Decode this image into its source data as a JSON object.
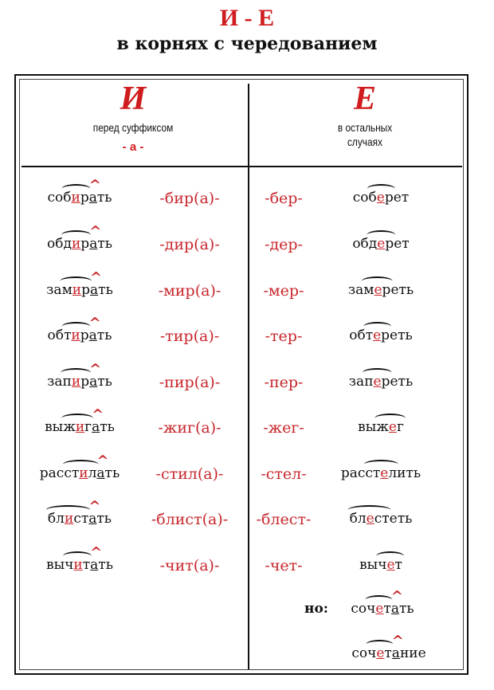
{
  "title": "И - Е",
  "subtitle": "в корнях с чередованием",
  "columns": [
    {
      "letter": "И",
      "desc_line1": "перед суффиксом",
      "desc_line2": "",
      "suffix": "- а -"
    },
    {
      "letter": "Е",
      "desc_line1": "в остальных",
      "desc_line2": "случаях"
    }
  ],
  "colors": {
    "accent": "#d01c1f",
    "text": "#111111"
  },
  "rows": [
    {
      "i_word": [
        "со",
        "б",
        "и",
        "р",
        "а",
        "ть"
      ],
      "i_root": "-бир(а)-",
      "e_root": "-бер-",
      "e_word": [
        "со",
        "б",
        "е",
        "р",
        "",
        "ет"
      ]
    },
    {
      "i_word": [
        "об",
        "д",
        "и",
        "р",
        "а",
        "ть"
      ],
      "i_root": "-дир(а)-",
      "e_root": "-дер-",
      "e_word": [
        "об",
        "д",
        "е",
        "р",
        "",
        "ет"
      ]
    },
    {
      "i_word": [
        "за",
        "м",
        "и",
        "р",
        "а",
        "ть"
      ],
      "i_root": "-мир(а)-",
      "e_root": "-мер-",
      "e_word": [
        "за",
        "м",
        "е",
        "р",
        "",
        "еть"
      ]
    },
    {
      "i_word": [
        "об",
        "т",
        "и",
        "р",
        "а",
        "ть"
      ],
      "i_root": "-тир(а)-",
      "e_root": "-тер-",
      "e_word": [
        "об",
        "т",
        "е",
        "р",
        "",
        "еть"
      ]
    },
    {
      "i_word": [
        "за",
        "п",
        "и",
        "р",
        "а",
        "ть"
      ],
      "i_root": "-пир(а)-",
      "e_root": "-пер-",
      "e_word": [
        "за",
        "п",
        "е",
        "р",
        "",
        "еть"
      ]
    },
    {
      "i_word": [
        "вы",
        "ж",
        "и",
        "г",
        "а",
        "ть"
      ],
      "i_root": "-жиг(а)-",
      "e_root": "-жег-",
      "e_word": [
        "вы",
        "ж",
        "е",
        "г",
        "",
        ""
      ]
    },
    {
      "i_word": [
        "рас",
        "ст",
        "и",
        "л",
        "а",
        "ть"
      ],
      "i_root": "-стил(а)-",
      "e_root": "-стел-",
      "e_word": [
        "рас",
        "ст",
        "е",
        "л",
        "",
        "ить"
      ]
    },
    {
      "i_word": [
        "",
        "бл",
        "и",
        "ст",
        "а",
        "ть"
      ],
      "i_root": "-блист(а)-",
      "e_root": "-блест-",
      "e_word": [
        "",
        "бл",
        "е",
        "ст",
        "",
        "еть"
      ]
    },
    {
      "i_word": [
        "вы",
        "ч",
        "и",
        "т",
        "а",
        "ть"
      ],
      "i_root": "-чит(а)-",
      "e_root": "-чет-",
      "e_word": [
        "вы",
        "ч",
        "е",
        "т",
        "",
        ""
      ]
    }
  ],
  "exception": {
    "label": "но:",
    "words": [
      [
        "со",
        "ч",
        "е",
        "т",
        "а",
        "ть"
      ],
      [
        "со",
        "ч",
        "е",
        "т",
        "а",
        "ние"
      ]
    ]
  }
}
